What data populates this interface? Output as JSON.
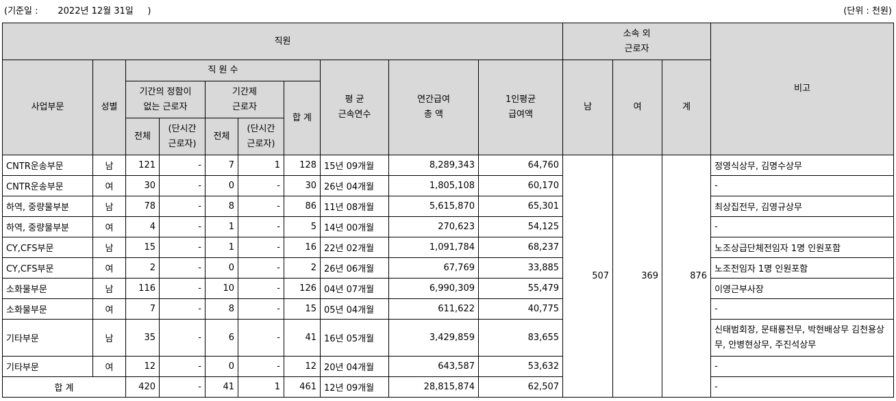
{
  "header": {
    "base_date": "(기준일 :       2022년 12월 31일     )",
    "unit": "(단위 : 천원)"
  },
  "columns": {
    "employees": "직원",
    "outside": "소속 외",
    "outside2": "근로자",
    "remarks": "비고",
    "division": "사업부문",
    "gender": "성별",
    "headcount": "직 원 수",
    "permanent": "기간의 정함이",
    "permanent2": "없는 근로자",
    "contract": "기간제",
    "contract2": "근로자",
    "total": "합 계",
    "avg_tenure": "평 균",
    "avg_tenure2": "근속연수",
    "annual_pay": "연간급여",
    "annual_pay2": "총 액",
    "per_capita": "1인평균",
    "per_capita2": "급여액",
    "male": "남",
    "female": "여",
    "sum": "계",
    "all": "전체",
    "part_time": "(단시간",
    "part_time2": "근로자)"
  },
  "rows": [
    {
      "division": "CNTR운송부문",
      "gender": "남",
      "perm_all": "121",
      "perm_part": "-",
      "cont_all": "7",
      "cont_part": "1",
      "total": "128",
      "tenure": "15년 09개월",
      "annual": "8,289,343",
      "avg": "64,760",
      "remark": "정영식상무, 김명수상무"
    },
    {
      "division": "CNTR운송부문",
      "gender": "여",
      "perm_all": "30",
      "perm_part": "-",
      "cont_all": "0",
      "cont_part": "-",
      "total": "30",
      "tenure": "26년 04개월",
      "annual": "1,805,108",
      "avg": "60,170",
      "remark": "-"
    },
    {
      "division": "하역, 중량물부분",
      "gender": "남",
      "perm_all": "78",
      "perm_part": "-",
      "cont_all": "8",
      "cont_part": "-",
      "total": "86",
      "tenure": "11년 08개월",
      "annual": "5,615,870",
      "avg": "65,301",
      "remark": "최상집전무, 김영규상무"
    },
    {
      "division": "하역, 중량물부분",
      "gender": "여",
      "perm_all": "4",
      "perm_part": "-",
      "cont_all": "1",
      "cont_part": "-",
      "total": "5",
      "tenure": "14년 00개월",
      "annual": "270,623",
      "avg": "54,125",
      "remark": "-"
    },
    {
      "division": "CY,CFS부문",
      "gender": "남",
      "perm_all": "15",
      "perm_part": "-",
      "cont_all": "1",
      "cont_part": "-",
      "total": "16",
      "tenure": "22년 02개월",
      "annual": "1,091,784",
      "avg": "68,237",
      "remark": "노조상급단체전임자 1명 인원포함"
    },
    {
      "division": "CY,CFS부문",
      "gender": "여",
      "perm_all": "2",
      "perm_part": "-",
      "cont_all": "0",
      "cont_part": "-",
      "total": "2",
      "tenure": "26년 06개월",
      "annual": "67,769",
      "avg": "33,885",
      "remark": "노조전임자 1명 인원포함"
    },
    {
      "division": "소화물부문",
      "gender": "남",
      "perm_all": "116",
      "perm_part": "-",
      "cont_all": "10",
      "cont_part": "-",
      "total": "126",
      "tenure": "04년 07개월",
      "annual": "6,990,309",
      "avg": "55,479",
      "remark": "이영근부사장"
    },
    {
      "division": "소화물부문",
      "gender": "여",
      "perm_all": "7",
      "perm_part": "-",
      "cont_all": "8",
      "cont_part": "-",
      "total": "15",
      "tenure": "05년 04개월",
      "annual": "611,622",
      "avg": "40,775",
      "remark": "-"
    },
    {
      "division": "기타부문",
      "gender": "남",
      "perm_all": "35",
      "perm_part": "-",
      "cont_all": "6",
      "cont_part": "-",
      "total": "41",
      "tenure": "16년 05개월",
      "annual": "3,429,859",
      "avg": "83,655",
      "remark": "신태범회장, 문태룡전무, 박현배상무 김천용상무, 안병현상무, 주진석상무"
    },
    {
      "division": "기타부문",
      "gender": "여",
      "perm_all": "12",
      "perm_part": "-",
      "cont_all": "0",
      "cont_part": "-",
      "total": "12",
      "tenure": "20년 04개월",
      "annual": "643,587",
      "avg": "53,632",
      "remark": "-"
    }
  ],
  "outside_workers": {
    "male": "507",
    "female": "369",
    "sum": "876"
  },
  "total_row": {
    "label": "합 계",
    "perm_all": "420",
    "perm_part": "-",
    "cont_all": "41",
    "cont_part": "1",
    "total": "461",
    "tenure": "12년 09개월",
    "annual": "28,815,874",
    "avg": "62,507",
    "remark": "-"
  }
}
